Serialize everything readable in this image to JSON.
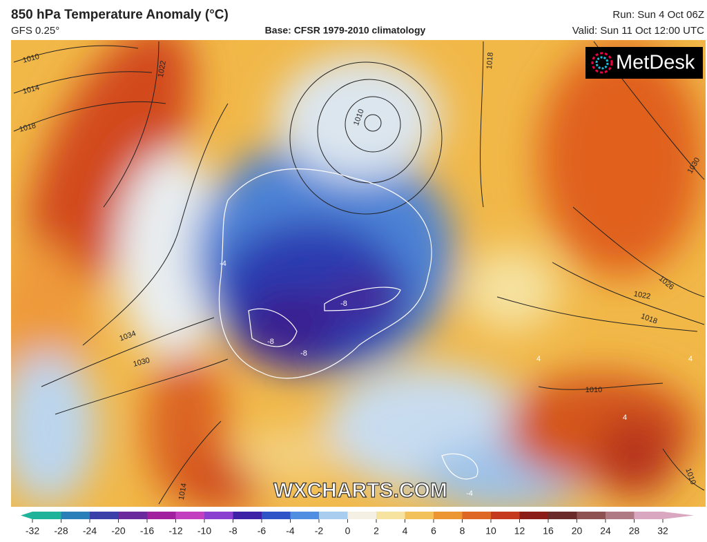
{
  "header": {
    "title": "850 hPa Temperature Anomaly (°C)",
    "model": "GFS 0.25°",
    "base": "Base: CFSR 1979-2010 climatology",
    "run": "Run: Sun 4 Oct 06Z",
    "valid": "Valid: Sun 11 Oct 12:00 UTC"
  },
  "map": {
    "logo": "MetDesk",
    "watermark": "WXCHARTS.COM",
    "isobar_labels": [
      "1010",
      "1014",
      "1018",
      "1022",
      "1034",
      "1030",
      "1010",
      "1018",
      "1030",
      "1026",
      "1022",
      "1018",
      "1014",
      "1010",
      "1010"
    ],
    "anomaly_labels": [
      "-4",
      "-8",
      "-8",
      "-8",
      "-4",
      "4",
      "4",
      "4"
    ]
  },
  "colorbar": {
    "ticks": [
      -32,
      -28,
      -24,
      -20,
      -16,
      -12,
      -10,
      -8,
      -6,
      -4,
      -2,
      0,
      2,
      4,
      6,
      8,
      10,
      12,
      16,
      20,
      24,
      28,
      32
    ],
    "colors": [
      "#1fb39a",
      "#2a7fb8",
      "#3b3fa8",
      "#6a2a9c",
      "#a0209e",
      "#c23fc0",
      "#8a3fd0",
      "#3d22a8",
      "#2f54c8",
      "#4f8ee0",
      "#a8cdef",
      "#f4f1e4",
      "#f6e3a0",
      "#f3c15a",
      "#eb9633",
      "#df6726",
      "#c53a1f",
      "#8b1d18",
      "#6a2a2a",
      "#8e5252",
      "#b07a84",
      "#d9a8c0"
    ]
  }
}
